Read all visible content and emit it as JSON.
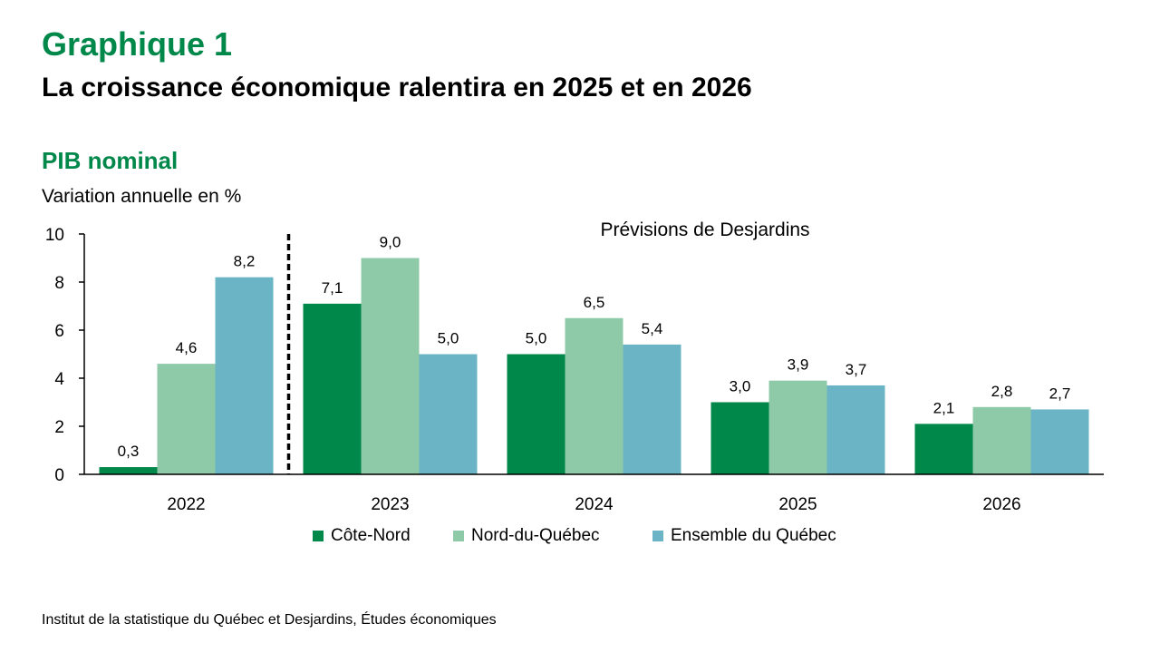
{
  "header": {
    "kicker": "Graphique 1",
    "title": "La croissance économique ralentira en 2025 et en 2026",
    "subtitle": "PIB nominal",
    "unit_label": "Variation annuelle en %"
  },
  "source": "Institut de la statistique du Québec et Desjardins, Études économiques",
  "chart_data": {
    "type": "bar",
    "title": "PIB nominal",
    "xlabel": "",
    "ylabel": "Variation annuelle en %",
    "ylim": [
      0,
      10
    ],
    "yticks": [
      0,
      2,
      4,
      6,
      8,
      10
    ],
    "ytick_labels": [
      "0",
      "2",
      "4",
      "6",
      "8",
      "10"
    ],
    "categories": [
      "2022",
      "2023",
      "2024",
      "2025",
      "2026"
    ],
    "series": [
      {
        "name": "Côte-Nord",
        "color": "#00874A",
        "values": [
          0.3,
          7.1,
          5.0,
          3.0,
          2.1
        ],
        "labels": [
          "0,3",
          "7,1",
          "5,0",
          "3,0",
          "2,1"
        ]
      },
      {
        "name": "Nord-du-Québec",
        "color": "#8FCAA8",
        "values": [
          4.6,
          9.0,
          6.5,
          3.9,
          2.8
        ],
        "labels": [
          "4,6",
          "9,0",
          "6,5",
          "3,9",
          "2,8"
        ]
      },
      {
        "name": "Ensemble du Québec",
        "color": "#6AB4C6",
        "values": [
          8.2,
          5.0,
          5.4,
          3.7,
          2.7
        ],
        "labels": [
          "8,2",
          "5,0",
          "5,4",
          "3,7",
          "2,7"
        ]
      }
    ],
    "annotations": [
      {
        "text": "Prévisions de Desjardins",
        "applies_to": [
          "2023",
          "2024",
          "2025",
          "2026"
        ]
      }
    ],
    "forecast_divider": {
      "between": [
        "2022",
        "2023"
      ],
      "style": "dashed"
    },
    "grid": false,
    "legend_position": "bottom"
  }
}
